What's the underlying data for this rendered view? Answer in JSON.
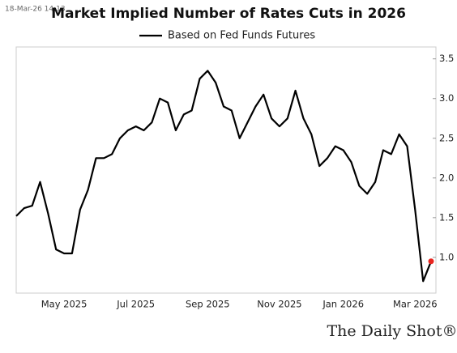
{
  "chart_data": {
    "type": "line",
    "timestamp": "18-Mar-26 14:13",
    "title": "Market Implied Number of Rates Cuts in 2026",
    "source": "The Daily Shot®",
    "categories": [
      null,
      null,
      null,
      null,
      null,
      null,
      "May 2025",
      null,
      null,
      null,
      null,
      null,
      null,
      null,
      null,
      "Jul 2025",
      null,
      null,
      null,
      null,
      null,
      null,
      null,
      null,
      "Sep 2025",
      null,
      null,
      null,
      null,
      null,
      null,
      null,
      null,
      "Nov 2025",
      null,
      null,
      null,
      null,
      null,
      null,
      null,
      "Jan 2026",
      null,
      null,
      null,
      null,
      null,
      null,
      null,
      null,
      "Mar 2026",
      null,
      null
    ],
    "series": [
      {
        "name": "Based on Fed Funds Futures",
        "color": "#000000",
        "values": [
          1.52,
          1.62,
          1.65,
          1.95,
          1.55,
          1.1,
          1.05,
          1.05,
          1.6,
          1.85,
          2.25,
          2.25,
          2.3,
          2.5,
          2.6,
          2.65,
          2.6,
          2.7,
          3.0,
          2.95,
          2.6,
          2.8,
          2.85,
          3.25,
          3.35,
          3.2,
          2.9,
          2.85,
          2.5,
          2.7,
          2.9,
          3.05,
          2.75,
          2.65,
          2.75,
          3.1,
          2.75,
          2.55,
          2.15,
          2.25,
          2.4,
          2.35,
          2.2,
          1.9,
          1.8,
          1.95,
          2.35,
          2.3,
          2.55,
          2.4,
          1.6,
          0.7,
          0.95
        ]
      }
    ],
    "last_point_color": "#e8251f",
    "ylim": [
      0.55,
      3.65
    ],
    "yticks": [
      {
        "value": 1,
        "label": "1.0"
      },
      {
        "value": 1.5,
        "label": "1.5"
      },
      {
        "value": 2,
        "label": "2.0"
      },
      {
        "value": 2.5,
        "label": "2.5"
      },
      {
        "value": 3,
        "label": "3.0"
      },
      {
        "value": 3.5,
        "label": "3.5"
      }
    ],
    "y_axis_side": "right",
    "grid": false
  }
}
